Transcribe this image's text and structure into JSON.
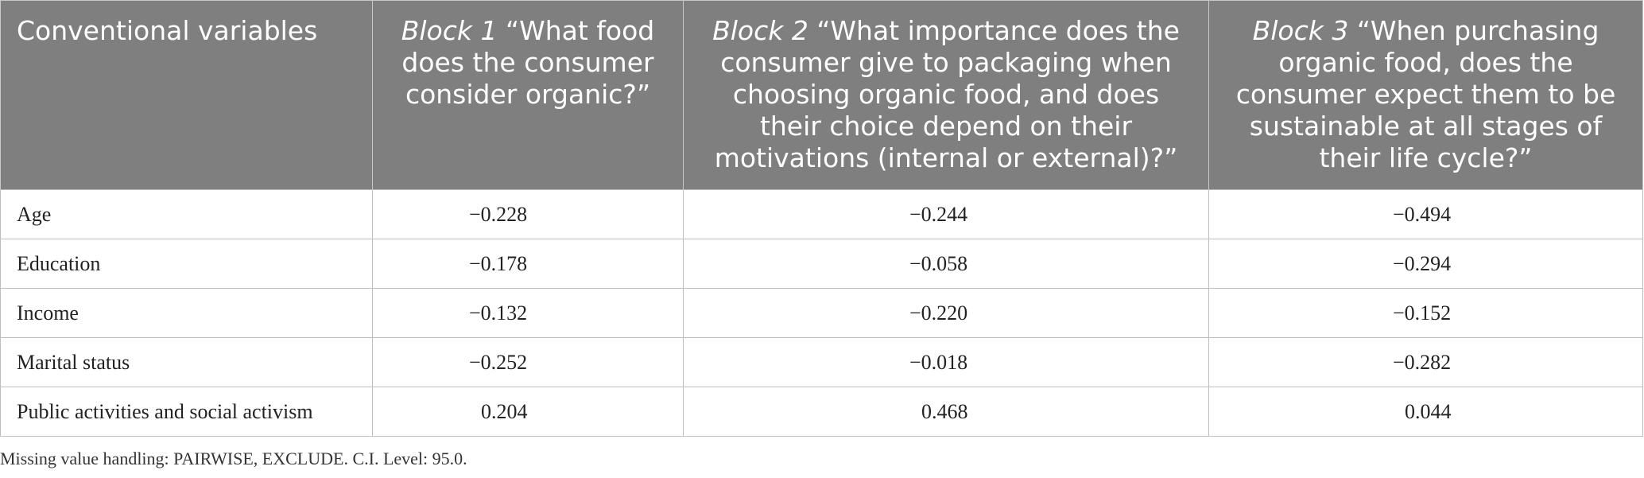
{
  "table": {
    "headers": [
      {
        "prefix": "",
        "text": "Conventional variables"
      },
      {
        "prefix": "Block 1",
        "text": " “What food does the consumer consider organic?”"
      },
      {
        "prefix": "Block 2",
        "text": " “What importance does the consumer give to packaging when choosing organic food, and does their choice depend on their motivations (internal or external)?”"
      },
      {
        "prefix": "Block 3",
        "text": " “When purchasing organic food, does the consumer expect them to be sustainable at all stages of their life cycle?”"
      }
    ],
    "rows": [
      {
        "label": "Age",
        "values": [
          "−0.228",
          "−0.244",
          "−0.494"
        ]
      },
      {
        "label": "Education",
        "values": [
          "−0.178",
          "−0.058",
          "−0.294"
        ]
      },
      {
        "label": "Income",
        "values": [
          "−0.132",
          "−0.220",
          "−0.152"
        ]
      },
      {
        "label": "Marital status",
        "values": [
          "−0.252",
          "−0.018",
          "−0.282"
        ]
      },
      {
        "label": "Public activities and social activism",
        "values": [
          "0.204",
          "0.468",
          "0.044"
        ]
      }
    ]
  },
  "footnote": "Missing value handling: PAIRWISE, EXCLUDE. C.I. Level: 95.0."
}
